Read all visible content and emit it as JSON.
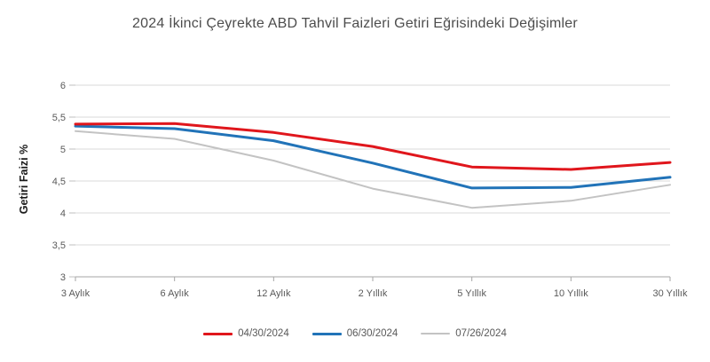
{
  "chart_data": {
    "type": "line",
    "title": "2024 İkinci Çeyrekte ABD Tahvil Faizleri Getiri Eğrisindeki Değişimler",
    "xlabel": "",
    "ylabel": "Getiri Faizi %",
    "categories": [
      "3 Aylık",
      "6 Aylık",
      "12 Aylık",
      "2 Yıllık",
      "5 Yıllık",
      "10 Yıllık",
      "30 Yıllık"
    ],
    "ylim": [
      3,
      6
    ],
    "y_tick_step": 0.5,
    "y_tick_labels": [
      "3",
      "3,5",
      "4",
      "4,5",
      "5",
      "5,5",
      "6"
    ],
    "grid": "horizontal",
    "legend_position": "bottom",
    "series": [
      {
        "name": "04/30/2024",
        "color": "#e0161c",
        "stroke_width": 3,
        "values": [
          5.39,
          5.4,
          5.26,
          5.04,
          4.72,
          4.68,
          4.79
        ]
      },
      {
        "name": "06/30/2024",
        "color": "#2173b8",
        "stroke_width": 3,
        "values": [
          5.36,
          5.32,
          5.13,
          4.78,
          4.39,
          4.4,
          4.56
        ]
      },
      {
        "name": "07/26/2024",
        "color": "#c3c3c3",
        "stroke_width": 2,
        "values": [
          5.28,
          5.16,
          4.82,
          4.38,
          4.08,
          4.19,
          4.44
        ]
      }
    ],
    "colors": {
      "gridline": "#d9d9d9",
      "axis_line": "#a6a6a6",
      "tick": "#bfbfbf",
      "title_text": "#4d4d4d",
      "axis_text": "#595959",
      "ylabel_text": "#1a1a1a",
      "legend_text": "#595959"
    }
  }
}
